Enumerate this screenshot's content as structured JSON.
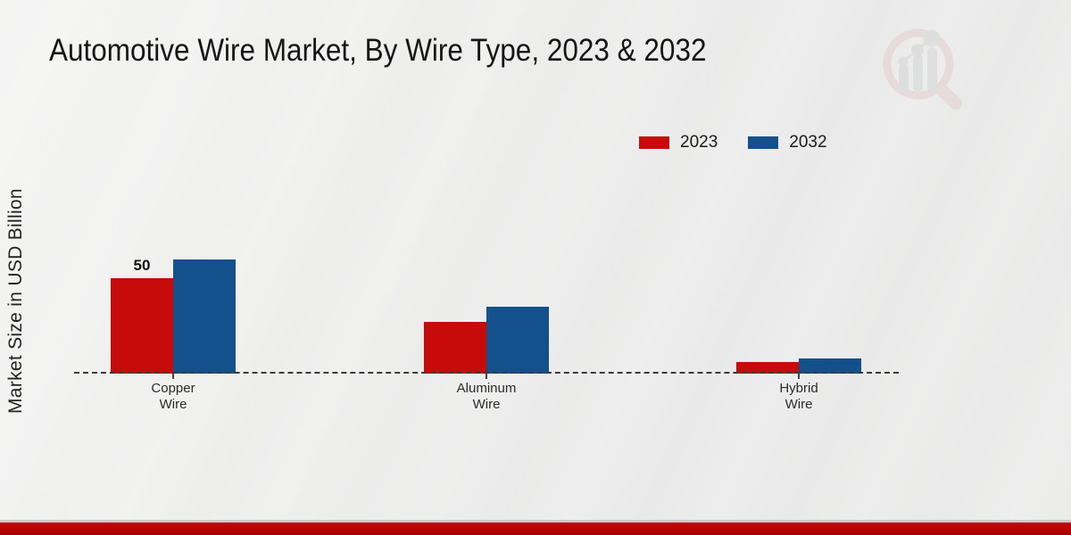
{
  "title": "Automotive Wire Market, By Wire Type, 2023 & 2032",
  "y_axis_label": "Market Size in USD Billion",
  "watermark": {
    "name": "market-research-future-logo"
  },
  "colors": {
    "series_2023": "#c70a0a",
    "series_2032": "#14518c",
    "footer_bar": "#b20303",
    "baseline": "#3b3b3b",
    "title_text": "#161616"
  },
  "legend": {
    "position": "top-right",
    "items": [
      {
        "label": "2023",
        "color": "#c70a0a"
      },
      {
        "label": "2032",
        "color": "#14518c"
      }
    ]
  },
  "chart_data": {
    "type": "bar",
    "title": "Automotive Wire Market, By Wire Type, 2023 & 2032",
    "xlabel": "",
    "ylabel": "Market Size in USD Billion",
    "categories": [
      {
        "name": "Copper Wire",
        "lines": [
          "Copper",
          "Wire"
        ]
      },
      {
        "name": "Aluminum Wire",
        "lines": [
          "Aluminum",
          "Wire"
        ]
      },
      {
        "name": "Hybrid Wire",
        "lines": [
          "Hybrid",
          "Wire"
        ]
      }
    ],
    "series": [
      {
        "name": "2023",
        "color": "#c70a0a",
        "values": [
          50,
          27,
          6
        ],
        "labels": [
          "50",
          null,
          null
        ]
      },
      {
        "name": "2032",
        "color": "#14518c",
        "values": [
          60,
          35,
          8
        ],
        "labels": [
          null,
          null,
          null
        ]
      }
    ],
    "ylim": [
      0,
      65
    ],
    "grid": false,
    "axis_style": "dashed-baseline-only",
    "legend_position": "top-right"
  }
}
